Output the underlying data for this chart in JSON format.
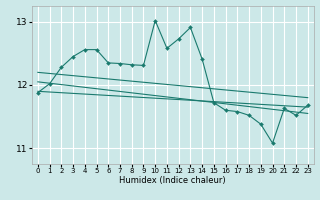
{
  "xlabel": "Humidex (Indice chaleur)",
  "bg_color": "#cce8e8",
  "grid_color": "#ffffff",
  "line_color": "#1a7a6e",
  "xlim": [
    -0.5,
    23.5
  ],
  "ylim": [
    10.75,
    13.25
  ],
  "yticks": [
    11,
    12,
    13
  ],
  "xticks": [
    0,
    1,
    2,
    3,
    4,
    5,
    6,
    7,
    8,
    9,
    10,
    11,
    12,
    13,
    14,
    15,
    16,
    17,
    18,
    19,
    20,
    21,
    22,
    23
  ],
  "main_x": [
    0,
    1,
    2,
    3,
    4,
    5,
    6,
    7,
    8,
    9,
    10,
    11,
    12,
    13,
    14,
    15,
    16,
    17,
    18,
    19,
    20,
    21,
    22,
    23
  ],
  "main_y": [
    11.88,
    12.02,
    12.28,
    12.45,
    12.56,
    12.56,
    12.35,
    12.34,
    12.32,
    12.31,
    13.02,
    12.58,
    12.73,
    12.91,
    12.41,
    11.72,
    11.6,
    11.58,
    11.52,
    11.38,
    11.08,
    11.63,
    11.52,
    11.68
  ],
  "trend_lines": [
    {
      "x0": 0,
      "y0": 12.2,
      "x1": 23,
      "y1": 11.8
    },
    {
      "x0": 0,
      "y0": 12.05,
      "x1": 23,
      "y1": 11.55
    },
    {
      "x0": 0,
      "y0": 11.9,
      "x1": 23,
      "y1": 11.65
    }
  ]
}
